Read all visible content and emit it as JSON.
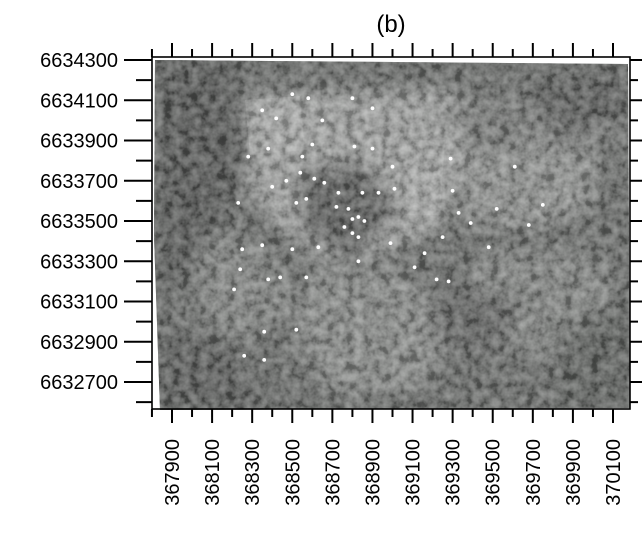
{
  "chart_data": {
    "type": "scatter",
    "title": "(b)",
    "xlabel": "",
    "ylabel": "",
    "xlim": [
      367800,
      370170
    ],
    "ylim": [
      6632560,
      6634320
    ],
    "x_ticks": [
      "367900",
      "368100",
      "368300",
      "368500",
      "368700",
      "368900",
      "369100",
      "369300",
      "369500",
      "369700",
      "369900",
      "370100"
    ],
    "y_ticks": [
      "6634300",
      "6634100",
      "6633900",
      "6633700",
      "6633500",
      "6633300",
      "6633100",
      "6632900",
      "6632700"
    ],
    "background": "aerial photograph (grayscale)",
    "grid": false,
    "series": [
      {
        "marker_color": "#ffffff",
        "points": [
          [
            368350,
            6634050
          ],
          [
            368420,
            6634010
          ],
          [
            368500,
            6634130
          ],
          [
            368580,
            6634110
          ],
          [
            368650,
            6634000
          ],
          [
            368800,
            6634110
          ],
          [
            368900,
            6634060
          ],
          [
            368280,
            6633820
          ],
          [
            368380,
            6633860
          ],
          [
            368550,
            6633820
          ],
          [
            368600,
            6633880
          ],
          [
            368810,
            6633870
          ],
          [
            368900,
            6633860
          ],
          [
            369000,
            6633770
          ],
          [
            369290,
            6633810
          ],
          [
            369610,
            6633770
          ],
          [
            368400,
            6633670
          ],
          [
            368470,
            6633700
          ],
          [
            368540,
            6633740
          ],
          [
            368610,
            6633710
          ],
          [
            368660,
            6633690
          ],
          [
            368730,
            6633640
          ],
          [
            368850,
            6633640
          ],
          [
            368930,
            6633640
          ],
          [
            369010,
            6633660
          ],
          [
            369300,
            6633650
          ],
          [
            368230,
            6633590
          ],
          [
            368520,
            6633590
          ],
          [
            368570,
            6633610
          ],
          [
            368720,
            6633570
          ],
          [
            368780,
            6633560
          ],
          [
            369330,
            6633540
          ],
          [
            369520,
            6633560
          ],
          [
            369750,
            6633580
          ],
          [
            368800,
            6633510
          ],
          [
            368830,
            6633520
          ],
          [
            368860,
            6633500
          ],
          [
            368760,
            6633470
          ],
          [
            368800,
            6633440
          ],
          [
            368830,
            6633420
          ],
          [
            369390,
            6633490
          ],
          [
            369680,
            6633480
          ],
          [
            368250,
            6633360
          ],
          [
            368350,
            6633380
          ],
          [
            368500,
            6633360
          ],
          [
            368630,
            6633370
          ],
          [
            368830,
            6633300
          ],
          [
            368990,
            6633390
          ],
          [
            369160,
            6633340
          ],
          [
            369250,
            6633420
          ],
          [
            369480,
            6633370
          ],
          [
            368240,
            6633260
          ],
          [
            368380,
            6633210
          ],
          [
            368440,
            6633220
          ],
          [
            368570,
            6633220
          ],
          [
            369110,
            6633270
          ],
          [
            369220,
            6633210
          ],
          [
            369280,
            6633200
          ],
          [
            368210,
            6633160
          ],
          [
            368360,
            6632950
          ],
          [
            368520,
            6632960
          ],
          [
            368260,
            6632830
          ],
          [
            368360,
            6632810
          ]
        ]
      }
    ]
  }
}
